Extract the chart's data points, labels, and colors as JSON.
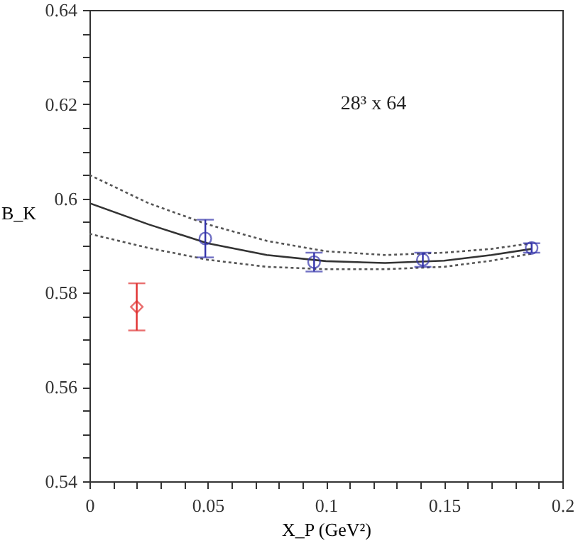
{
  "chart_data": {
    "type": "scatter",
    "xlabel": "X_P (GeV²)",
    "ylabel": "B_K",
    "xlim": [
      0,
      0.2
    ],
    "ylim": [
      0.54,
      0.64
    ],
    "xticks": [
      0,
      {
        "value": 0.01,
        "label": null
      },
      {
        "value": 0.02,
        "label": null
      },
      {
        "value": 0.03,
        "label": null
      },
      {
        "value": 0.04,
        "label": null
      },
      0.05,
      {
        "value": 0.06,
        "label": null
      },
      {
        "value": 0.07,
        "label": null
      },
      {
        "value": 0.08,
        "label": null
      },
      {
        "value": 0.09,
        "label": null
      },
      0.1,
      {
        "value": 0.11,
        "label": null
      },
      {
        "value": 0.12,
        "label": null
      },
      {
        "value": 0.13,
        "label": null
      },
      {
        "value": 0.14,
        "label": null
      },
      0.15,
      {
        "value": 0.16,
        "label": null
      },
      {
        "value": 0.17,
        "label": null
      },
      {
        "value": 0.18,
        "label": null
      },
      {
        "value": 0.19,
        "label": null
      },
      0.2
    ],
    "yticks": [
      0.54,
      {
        "value": 0.545,
        "label": null
      },
      {
        "value": 0.55,
        "label": null
      },
      {
        "value": 0.555,
        "label": null
      },
      0.56,
      {
        "value": 0.565,
        "label": null
      },
      {
        "value": 0.57,
        "label": null
      },
      {
        "value": 0.575,
        "label": null
      },
      0.58,
      {
        "value": 0.585,
        "label": null
      },
      {
        "value": 0.59,
        "label": null
      },
      {
        "value": 0.595,
        "label": null
      },
      0.6,
      {
        "value": 0.605,
        "label": null
      },
      {
        "value": 0.61,
        "label": null
      },
      {
        "value": 0.615,
        "label": null
      },
      0.62,
      {
        "value": 0.625,
        "label": null
      },
      {
        "value": 0.63,
        "label": null
      },
      {
        "value": 0.635,
        "label": null
      },
      0.64
    ],
    "grid": false,
    "annotations": [
      "28³ x 64"
    ],
    "series": [
      {
        "type": "line",
        "color": "#333333",
        "line_style": "solid",
        "x": [
          0,
          0.025,
          0.05,
          0.075,
          0.1,
          0.125,
          0.15,
          0.17,
          0.187
        ],
        "values": [
          0.599,
          0.5945,
          0.5905,
          0.588,
          0.5867,
          0.5863,
          0.5868,
          0.588,
          0.5893
        ]
      },
      {
        "type": "line",
        "color": "#555555",
        "line_style": "dotted",
        "x": [
          0,
          0.025,
          0.05,
          0.075,
          0.1,
          0.125,
          0.15,
          0.17,
          0.187
        ],
        "values": [
          0.605,
          0.599,
          0.5945,
          0.591,
          0.5888,
          0.588,
          0.5885,
          0.5893,
          0.5905
        ]
      },
      {
        "type": "line",
        "color": "#555555",
        "line_style": "dotted",
        "x": [
          0,
          0.025,
          0.05,
          0.075,
          0.1,
          0.125,
          0.15,
          0.17,
          0.187
        ],
        "values": [
          0.5925,
          0.5895,
          0.587,
          0.5855,
          0.585,
          0.585,
          0.5855,
          0.5868,
          0.5883
        ]
      },
      {
        "color": "#3333aa",
        "marker": "circle",
        "x": [
          0.049,
          0.095,
          0.141,
          0.187
        ],
        "values": [
          0.5915,
          0.5865,
          0.587,
          0.5895
        ],
        "errors": [
          0.004,
          0.002,
          0.0015,
          0.001
        ]
      },
      {
        "color": "#e03030",
        "marker": "diamond",
        "x": [
          0.02
        ],
        "values": [
          0.577
        ],
        "errors": [
          0.005
        ]
      }
    ]
  }
}
